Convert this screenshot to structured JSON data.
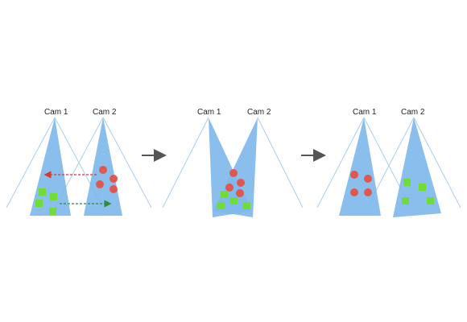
{
  "panels": [
    {
      "cam1_label": "Cam 1",
      "cam2_label": "Cam 2"
    },
    {
      "cam1_label": "Cam 1",
      "cam2_label": "Cam 2"
    },
    {
      "cam1_label": "Cam 1",
      "cam2_label": "Cam 2"
    }
  ],
  "colors": {
    "fov": "#7fb8ec",
    "ray": "#a9cdf1",
    "red_object": "#e0574f",
    "green_object": "#6fdc3a",
    "red_arrow": "#d9382e",
    "green_arrow": "#2e8b3a",
    "transition_arrow": "#555555"
  }
}
